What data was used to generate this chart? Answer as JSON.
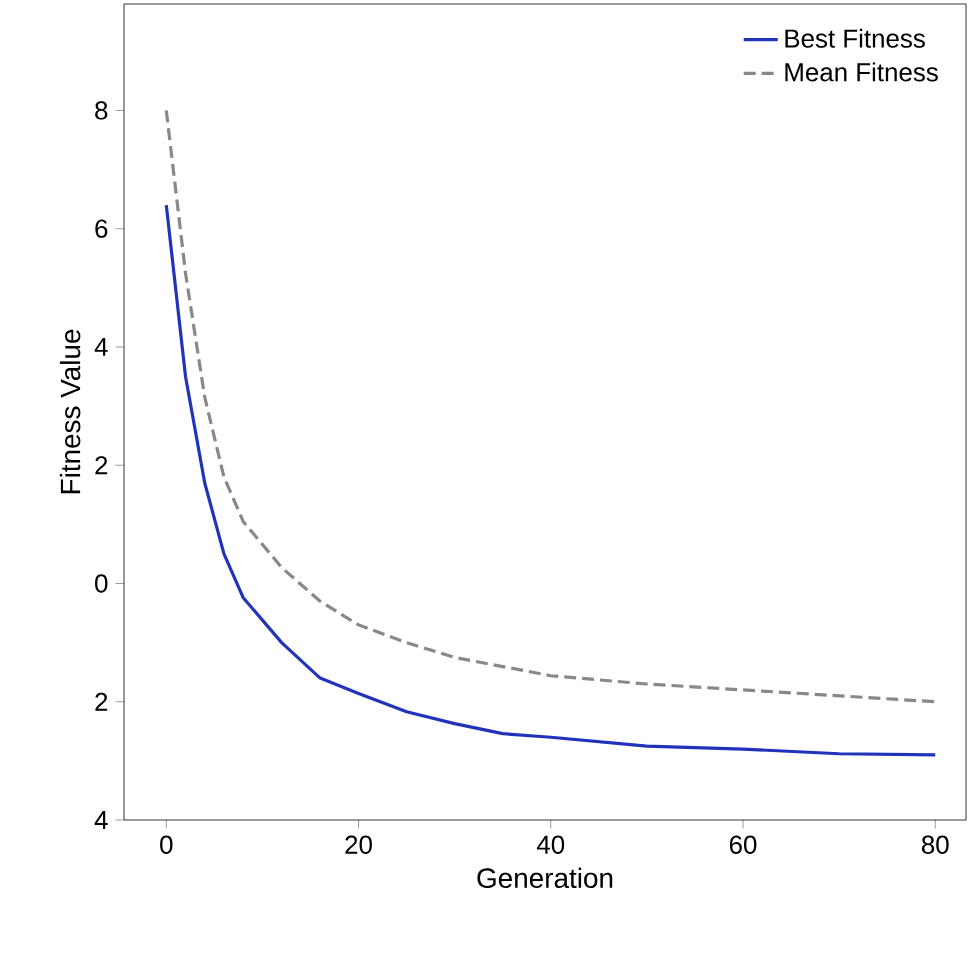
{
  "chart_data": {
    "type": "line",
    "xlabel": "Generation",
    "ylabel": "Fitness Value",
    "xlim": [
      -4.4,
      83.2
    ],
    "ylim": [
      -4,
      9.8
    ],
    "xticks": [
      0,
      20,
      40,
      60,
      80
    ],
    "yticks": [
      {
        "value": -4,
        "label": "4"
      },
      {
        "value": -2,
        "label": "2"
      },
      0,
      2,
      4,
      6,
      8
    ],
    "grid": false,
    "legend": "top right",
    "series": [
      {
        "name": "Best Fitness",
        "color": "#2233bb",
        "line_style": "solid",
        "x": [
          0,
          2,
          4,
          6,
          8,
          12,
          16,
          20,
          25,
          30,
          35,
          40,
          50,
          60,
          70,
          80
        ],
        "values": [
          6.4,
          3.5,
          1.7,
          0.5,
          -0.24,
          -1.0,
          -1.6,
          -1.86,
          -2.17,
          -2.37,
          -2.54,
          -2.6,
          -2.75,
          -2.8,
          -2.88,
          -2.9
        ]
      },
      {
        "name": "Mean Fitness",
        "color": "#888888",
        "line_style": "dashed",
        "x": [
          0,
          2,
          4,
          6,
          8,
          12,
          16,
          20,
          25,
          30,
          40,
          50,
          60,
          70,
          80
        ],
        "values": [
          8.0,
          5.25,
          3.15,
          1.8,
          1.05,
          0.27,
          -0.3,
          -0.7,
          -1.0,
          -1.25,
          -1.56,
          -1.7,
          -1.8,
          -1.9,
          -2.0
        ]
      }
    ]
  }
}
